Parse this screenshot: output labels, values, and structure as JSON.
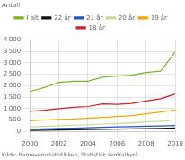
{
  "chart_data": {
    "type": "line",
    "ylabel": "Antall",
    "annotations": [
      "Kilde: Barnevernstatistikken, Statistisk sentralbyrå."
    ],
    "x": [
      2000,
      2001,
      2002,
      2003,
      2004,
      2005,
      2006,
      2007,
      2008,
      2009,
      2010
    ],
    "series": [
      {
        "name": "I alt",
        "color": "#7ab527",
        "values": [
          1750,
          1920,
          2150,
          2200,
          2200,
          2370,
          2420,
          2460,
          2580,
          2640,
          3480
        ]
      },
      {
        "name": "22 år",
        "color": "#111111",
        "values": [
          50,
          60,
          70,
          80,
          85,
          95,
          105,
          115,
          125,
          135,
          155
        ]
      },
      {
        "name": "21 år",
        "color": "#2255cc",
        "values": [
          100,
          115,
          135,
          150,
          165,
          185,
          205,
          215,
          235,
          248,
          265
        ]
      },
      {
        "name": "20 år",
        "color": "#c8d898",
        "values": [
          210,
          230,
          255,
          280,
          300,
          330,
          355,
          385,
          425,
          455,
          505
        ]
      },
      {
        "name": "19 år",
        "color": "#f0a800",
        "values": [
          475,
          505,
          530,
          550,
          580,
          620,
          655,
          700,
          775,
          855,
          945
        ]
      },
      {
        "name": "18 år",
        "color": "#cc2222",
        "values": [
          880,
          930,
          1000,
          1060,
          1095,
          1210,
          1185,
          1230,
          1335,
          1430,
          1640
        ]
      }
    ],
    "xlim": [
      2000,
      2010
    ],
    "xticks": [
      2000,
      2002,
      2004,
      2006,
      2008,
      2010
    ],
    "ylim": [
      0,
      4000
    ],
    "yticks": [
      0,
      500,
      {
        "value": 1000,
        "label": "1 000"
      },
      {
        "value": 1500,
        "label": "1 500"
      },
      {
        "value": 2000,
        "label": "2 000"
      },
      {
        "value": 2500,
        "label": "2 500"
      },
      {
        "value": 3000,
        "label": "3 000"
      },
      {
        "value": 3500,
        "label": "3 500"
      },
      {
        "value": 4000,
        "label": "4 000"
      }
    ],
    "grid": true,
    "legend": "top"
  }
}
